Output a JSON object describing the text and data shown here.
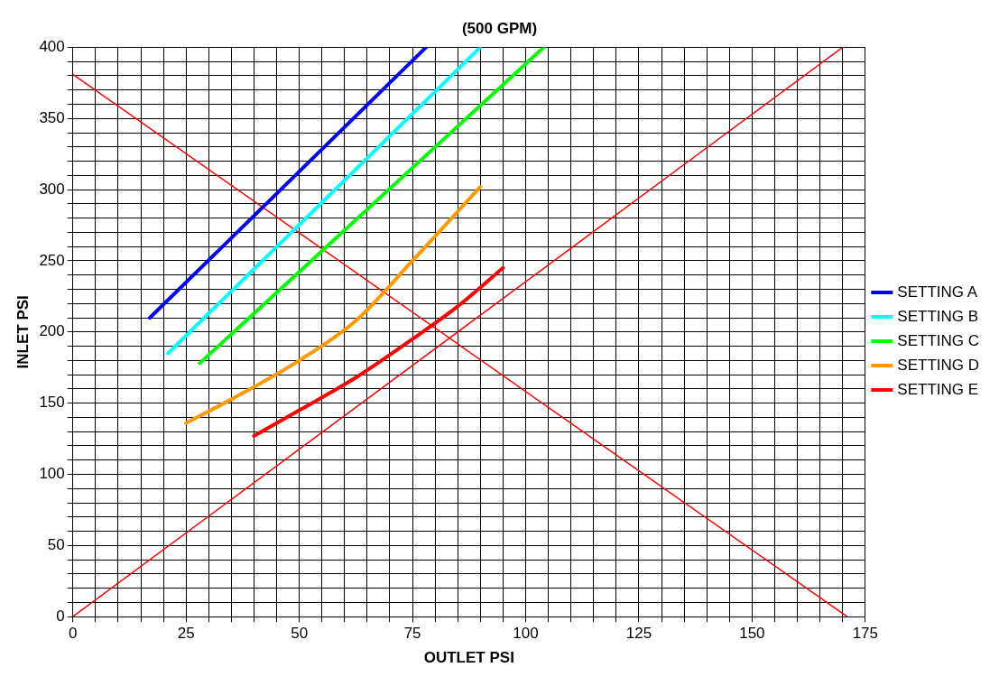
{
  "chart_data": {
    "type": "line",
    "title": "(500 GPM)",
    "xlabel": "OUTLET PSI",
    "ylabel": "INLET PSI",
    "xlim": [
      0,
      175
    ],
    "ylim": [
      0,
      400
    ],
    "xticks": [
      0,
      {
        "value": 5,
        "label": null
      },
      {
        "value": 10,
        "label": null
      },
      {
        "value": 15,
        "label": null
      },
      {
        "value": 20,
        "label": null
      },
      25,
      {
        "value": 30,
        "label": null
      },
      {
        "value": 35,
        "label": null
      },
      {
        "value": 40,
        "label": null
      },
      {
        "value": 45,
        "label": null
      },
      50,
      {
        "value": 55,
        "label": null
      },
      {
        "value": 60,
        "label": null
      },
      {
        "value": 65,
        "label": null
      },
      {
        "value": 70,
        "label": null
      },
      75,
      {
        "value": 80,
        "label": null
      },
      {
        "value": 85,
        "label": null
      },
      {
        "value": 90,
        "label": null
      },
      {
        "value": 95,
        "label": null
      },
      100,
      {
        "value": 105,
        "label": null
      },
      {
        "value": 110,
        "label": null
      },
      {
        "value": 115,
        "label": null
      },
      {
        "value": 120,
        "label": null
      },
      125,
      {
        "value": 130,
        "label": null
      },
      {
        "value": 135,
        "label": null
      },
      {
        "value": 140,
        "label": null
      },
      {
        "value": 145,
        "label": null
      },
      150,
      {
        "value": 155,
        "label": null
      },
      {
        "value": 160,
        "label": null
      },
      {
        "value": 165,
        "label": null
      },
      {
        "value": 170,
        "label": null
      },
      175
    ],
    "yticks": [
      0,
      {
        "value": 10,
        "label": null
      },
      {
        "value": 20,
        "label": null
      },
      {
        "value": 30,
        "label": null
      },
      {
        "value": 40,
        "label": null
      },
      50,
      {
        "value": 60,
        "label": null
      },
      {
        "value": 70,
        "label": null
      },
      {
        "value": 80,
        "label": null
      },
      {
        "value": 90,
        "label": null
      },
      100,
      {
        "value": 110,
        "label": null
      },
      {
        "value": 120,
        "label": null
      },
      {
        "value": 130,
        "label": null
      },
      {
        "value": 140,
        "label": null
      },
      150,
      {
        "value": 160,
        "label": null
      },
      {
        "value": 170,
        "label": null
      },
      {
        "value": 180,
        "label": null
      },
      {
        "value": 190,
        "label": null
      },
      200,
      {
        "value": 210,
        "label": null
      },
      {
        "value": 220,
        "label": null
      },
      {
        "value": 230,
        "label": null
      },
      {
        "value": 240,
        "label": null
      },
      250,
      {
        "value": 260,
        "label": null
      },
      {
        "value": 270,
        "label": null
      },
      {
        "value": 280,
        "label": null
      },
      {
        "value": 290,
        "label": null
      },
      300,
      {
        "value": 310,
        "label": null
      },
      {
        "value": 320,
        "label": null
      },
      {
        "value": 330,
        "label": null
      },
      {
        "value": 340,
        "label": null
      },
      350,
      {
        "value": 360,
        "label": null
      },
      {
        "value": 370,
        "label": null
      },
      {
        "value": 380,
        "label": null
      },
      {
        "value": 390,
        "label": null
      },
      400
    ],
    "grid": true,
    "legend": "right",
    "marker": "none",
    "line_style": "solid",
    "series": [
      {
        "name": "SETTING A",
        "color": "#0000ff",
        "x": [
          17,
          78
        ],
        "values": [
          210,
          400
        ]
      },
      {
        "name": "SETTING B",
        "color": "#00ffff",
        "x": [
          21,
          90
        ],
        "values": [
          185,
          400
        ]
      },
      {
        "name": "SETTING C",
        "color": "#00ff00",
        "x": [
          28,
          104
        ],
        "values": [
          178,
          400
        ]
      },
      {
        "name": "SETTING D",
        "color": "#ff9900",
        "x": [
          25,
          37.5,
          50,
          62.5,
          75,
          90
        ],
        "values": [
          136,
          157,
          180,
          208,
          250,
          302
        ]
      },
      {
        "name": "SETTING E",
        "color": "#ff0000",
        "x": [
          40,
          50,
          62.5,
          75,
          85,
          95
        ],
        "values": [
          127,
          145,
          168,
          195,
          218,
          245
        ]
      },
      {
        "color": "#ff0000",
        "x": [
          0,
          170
        ],
        "values": [
          0,
          400
        ]
      },
      {
        "color": "#ff0000",
        "x": [
          0,
          171
        ],
        "values": [
          381,
          0
        ]
      }
    ]
  }
}
